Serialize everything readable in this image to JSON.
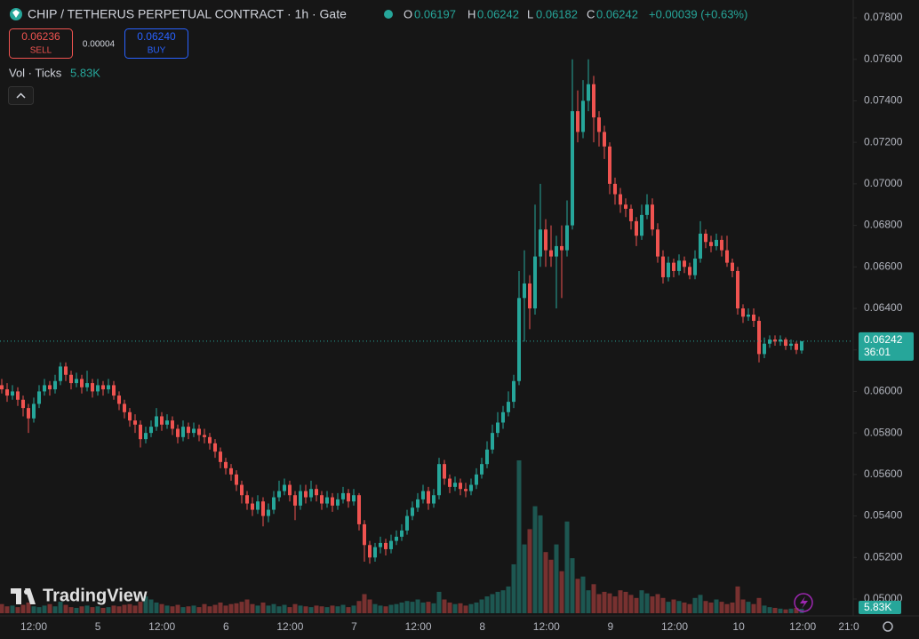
{
  "header": {
    "title": "CHIP / TETHERUS PERPETUAL CONTRACT · 1h · Gate",
    "o_label": "O",
    "h_label": "H",
    "l_label": "L",
    "c_label": "C",
    "change": "+0.00039 (+0.63%)"
  },
  "trade": {
    "sell_price": "0.06236",
    "sell": "SELL",
    "spread": "0.00004",
    "buy_price": "0.06240",
    "buy": "BUY"
  },
  "countdown": "36:01",
  "logo": "TradingView",
  "chart_data": {
    "type": "candlestick",
    "up_color": "#26a69a",
    "down_color": "#ef5350",
    "ylim": [
      0.05,
      0.078
    ],
    "yticks": [
      {
        "value": 0.078,
        "label": "0.07800"
      },
      {
        "value": 0.076,
        "label": "0.07600"
      },
      {
        "value": 0.074,
        "label": "0.07400"
      },
      {
        "value": 0.072,
        "label": "0.07200"
      },
      {
        "value": 0.07,
        "label": "0.07000"
      },
      {
        "value": 0.068,
        "label": "0.06800"
      },
      {
        "value": 0.066,
        "label": "0.06600"
      },
      {
        "value": 0.064,
        "label": "0.06400"
      },
      {
        "value": 0.062,
        "label": "0.06200"
      },
      {
        "value": 0.06,
        "label": "0.06000"
      },
      {
        "value": 0.058,
        "label": "0.05800"
      },
      {
        "value": 0.056,
        "label": "0.05600"
      },
      {
        "value": 0.054,
        "label": "0.05400"
      },
      {
        "value": 0.052,
        "label": "0.05200"
      },
      {
        "value": 0.05,
        "label": "0.05000"
      }
    ],
    "xtick_labels": [
      "12:00",
      "5",
      "12:00",
      "6",
      "12:00",
      "7",
      "12:00",
      "8",
      "12:00",
      "9",
      "12:00",
      "10",
      "12:00",
      "21:0"
    ],
    "ohlc": [
      [
        0.0603,
        0.0606,
        0.0599,
        0.0601
      ],
      [
        0.0601,
        0.0604,
        0.0595,
        0.0598
      ],
      [
        0.0598,
        0.0603,
        0.0596,
        0.06
      ],
      [
        0.06,
        0.0602,
        0.0593,
        0.0596
      ],
      [
        0.0596,
        0.0598,
        0.0588,
        0.0592
      ],
      [
        0.0592,
        0.0594,
        0.058,
        0.0587
      ],
      [
        0.0587,
        0.0597,
        0.0585,
        0.0594
      ],
      [
        0.0594,
        0.0603,
        0.0592,
        0.06
      ],
      [
        0.06,
        0.0606,
        0.0598,
        0.0603
      ],
      [
        0.0603,
        0.0605,
        0.0598,
        0.0601
      ],
      [
        0.0601,
        0.0608,
        0.0599,
        0.0605
      ],
      [
        0.0605,
        0.0614,
        0.0603,
        0.0612
      ],
      [
        0.0612,
        0.0614,
        0.0605,
        0.0608
      ],
      [
        0.0608,
        0.061,
        0.0601,
        0.0604
      ],
      [
        0.0604,
        0.0609,
        0.0602,
        0.0606
      ],
      [
        0.0606,
        0.0608,
        0.0599,
        0.0602
      ],
      [
        0.0602,
        0.061,
        0.06,
        0.0604
      ],
      [
        0.0604,
        0.0606,
        0.0597,
        0.06
      ],
      [
        0.06,
        0.0606,
        0.0598,
        0.0603
      ],
      [
        0.0603,
        0.0605,
        0.0598,
        0.0601
      ],
      [
        0.0601,
        0.0606,
        0.0599,
        0.0603
      ],
      [
        0.0603,
        0.0605,
        0.0596,
        0.0598
      ],
      [
        0.0598,
        0.06,
        0.0591,
        0.0594
      ],
      [
        0.0594,
        0.0596,
        0.0587,
        0.059
      ],
      [
        0.059,
        0.0592,
        0.0583,
        0.0586
      ],
      [
        0.0586,
        0.0589,
        0.058,
        0.0584
      ],
      [
        0.0584,
        0.0586,
        0.0573,
        0.0577
      ],
      [
        0.0577,
        0.0583,
        0.0575,
        0.058
      ],
      [
        0.058,
        0.0586,
        0.0578,
        0.0583
      ],
      [
        0.0583,
        0.0592,
        0.0581,
        0.0588
      ],
      [
        0.0588,
        0.059,
        0.0581,
        0.0584
      ],
      [
        0.0584,
        0.0589,
        0.0582,
        0.0586
      ],
      [
        0.0586,
        0.0588,
        0.0579,
        0.0582
      ],
      [
        0.0582,
        0.0584,
        0.0575,
        0.0578
      ],
      [
        0.0578,
        0.0586,
        0.0576,
        0.0583
      ],
      [
        0.0583,
        0.0585,
        0.0577,
        0.058
      ],
      [
        0.058,
        0.0585,
        0.0578,
        0.0582
      ],
      [
        0.0582,
        0.0584,
        0.0576,
        0.0579
      ],
      [
        0.0579,
        0.0582,
        0.0575,
        0.0578
      ],
      [
        0.0578,
        0.058,
        0.0572,
        0.0575
      ],
      [
        0.0575,
        0.0577,
        0.0568,
        0.0571
      ],
      [
        0.0571,
        0.0573,
        0.0563,
        0.0566
      ],
      [
        0.0566,
        0.0568,
        0.056,
        0.0563
      ],
      [
        0.0563,
        0.0565,
        0.0557,
        0.056
      ],
      [
        0.056,
        0.0562,
        0.0552,
        0.0555
      ],
      [
        0.0555,
        0.0557,
        0.0546,
        0.055
      ],
      [
        0.055,
        0.0552,
        0.0543,
        0.0546
      ],
      [
        0.0546,
        0.0549,
        0.054,
        0.0543
      ],
      [
        0.0543,
        0.055,
        0.0541,
        0.0547
      ],
      [
        0.0547,
        0.0549,
        0.0535,
        0.054
      ],
      [
        0.054,
        0.0546,
        0.0537,
        0.0543
      ],
      [
        0.0543,
        0.0552,
        0.0541,
        0.0549
      ],
      [
        0.0549,
        0.0557,
        0.0547,
        0.0552
      ],
      [
        0.0552,
        0.0558,
        0.055,
        0.0555
      ],
      [
        0.0555,
        0.0557,
        0.0547,
        0.055
      ],
      [
        0.055,
        0.0552,
        0.0538,
        0.0545
      ],
      [
        0.0545,
        0.0555,
        0.0543,
        0.0552
      ],
      [
        0.0552,
        0.0555,
        0.0546,
        0.0549
      ],
      [
        0.0549,
        0.0557,
        0.0547,
        0.0553
      ],
      [
        0.0553,
        0.0555,
        0.0547,
        0.055
      ],
      [
        0.055,
        0.0552,
        0.0543,
        0.0546
      ],
      [
        0.0546,
        0.0552,
        0.0544,
        0.0549
      ],
      [
        0.0549,
        0.0551,
        0.0542,
        0.0545
      ],
      [
        0.0545,
        0.0551,
        0.0543,
        0.0548
      ],
      [
        0.0548,
        0.0554,
        0.0546,
        0.0551
      ],
      [
        0.0551,
        0.0553,
        0.0544,
        0.0547
      ],
      [
        0.0547,
        0.0553,
        0.0545,
        0.055
      ],
      [
        0.055,
        0.0551,
        0.0533,
        0.0536
      ],
      [
        0.0536,
        0.0538,
        0.0518,
        0.0526
      ],
      [
        0.0526,
        0.0528,
        0.0517,
        0.052
      ],
      [
        0.052,
        0.0527,
        0.0518,
        0.0525
      ],
      [
        0.0525,
        0.053,
        0.0522,
        0.0527
      ],
      [
        0.0527,
        0.0529,
        0.0521,
        0.0524
      ],
      [
        0.0524,
        0.0531,
        0.0522,
        0.0528
      ],
      [
        0.0528,
        0.0533,
        0.0526,
        0.053
      ],
      [
        0.053,
        0.0536,
        0.0528,
        0.0533
      ],
      [
        0.0533,
        0.0543,
        0.0531,
        0.054
      ],
      [
        0.054,
        0.0547,
        0.0538,
        0.0544
      ],
      [
        0.0544,
        0.0551,
        0.0542,
        0.0548
      ],
      [
        0.0548,
        0.0555,
        0.0546,
        0.0552
      ],
      [
        0.0552,
        0.0554,
        0.0543,
        0.0546
      ],
      [
        0.0546,
        0.0553,
        0.0544,
        0.055
      ],
      [
        0.055,
        0.0568,
        0.0548,
        0.0565
      ],
      [
        0.0565,
        0.0567,
        0.0555,
        0.0558
      ],
      [
        0.0558,
        0.056,
        0.0551,
        0.0554
      ],
      [
        0.0554,
        0.0559,
        0.0552,
        0.0556
      ],
      [
        0.0556,
        0.0558,
        0.055,
        0.0553
      ],
      [
        0.0553,
        0.0556,
        0.0549,
        0.0552
      ],
      [
        0.0552,
        0.0558,
        0.055,
        0.0555
      ],
      [
        0.0555,
        0.0563,
        0.0553,
        0.056
      ],
      [
        0.056,
        0.0568,
        0.0558,
        0.0565
      ],
      [
        0.0565,
        0.0576,
        0.0563,
        0.0572
      ],
      [
        0.0572,
        0.0584,
        0.057,
        0.058
      ],
      [
        0.058,
        0.059,
        0.0578,
        0.0585
      ],
      [
        0.0585,
        0.0593,
        0.0582,
        0.059
      ],
      [
        0.059,
        0.06,
        0.0588,
        0.0595
      ],
      [
        0.0595,
        0.0608,
        0.0592,
        0.0605
      ],
      [
        0.0605,
        0.0658,
        0.0603,
        0.0645
      ],
      [
        0.0645,
        0.0668,
        0.0624,
        0.0652
      ],
      [
        0.0652,
        0.0656,
        0.063,
        0.064
      ],
      [
        0.064,
        0.069,
        0.0637,
        0.0665
      ],
      [
        0.0665,
        0.07,
        0.066,
        0.0678
      ],
      [
        0.0678,
        0.0683,
        0.066,
        0.0668
      ],
      [
        0.0668,
        0.068,
        0.066,
        0.0665
      ],
      [
        0.0665,
        0.0675,
        0.064,
        0.067
      ],
      [
        0.067,
        0.068,
        0.0645,
        0.0668
      ],
      [
        0.0668,
        0.0692,
        0.0665,
        0.068
      ],
      [
        0.068,
        0.076,
        0.0678,
        0.0735
      ],
      [
        0.0735,
        0.0745,
        0.072,
        0.0725
      ],
      [
        0.0725,
        0.075,
        0.0722,
        0.074
      ],
      [
        0.074,
        0.076,
        0.0735,
        0.0748
      ],
      [
        0.0748,
        0.0752,
        0.072,
        0.0732
      ],
      [
        0.0732,
        0.0735,
        0.0718,
        0.0725
      ],
      [
        0.0725,
        0.0728,
        0.0712,
        0.0718
      ],
      [
        0.0718,
        0.072,
        0.0695,
        0.07
      ],
      [
        0.07,
        0.0703,
        0.069,
        0.0695
      ],
      [
        0.0695,
        0.0698,
        0.0686,
        0.069
      ],
      [
        0.069,
        0.0693,
        0.0684,
        0.0688
      ],
      [
        0.0688,
        0.069,
        0.0678,
        0.0682
      ],
      [
        0.0682,
        0.0684,
        0.067,
        0.0675
      ],
      [
        0.0675,
        0.069,
        0.0673,
        0.0685
      ],
      [
        0.0685,
        0.0695,
        0.0683,
        0.069
      ],
      [
        0.069,
        0.0693,
        0.0675,
        0.0678
      ],
      [
        0.0678,
        0.0681,
        0.0662,
        0.0665
      ],
      [
        0.0665,
        0.0668,
        0.0652,
        0.0655
      ],
      [
        0.0655,
        0.0665,
        0.0653,
        0.0662
      ],
      [
        0.0662,
        0.0664,
        0.0655,
        0.0658
      ],
      [
        0.0658,
        0.0666,
        0.0656,
        0.0663
      ],
      [
        0.0663,
        0.0665,
        0.0657,
        0.066
      ],
      [
        0.066,
        0.0662,
        0.0654,
        0.0656
      ],
      [
        0.0656,
        0.0668,
        0.0654,
        0.0664
      ],
      [
        0.0664,
        0.0682,
        0.0662,
        0.0676
      ],
      [
        0.0676,
        0.0678,
        0.0669,
        0.0672
      ],
      [
        0.0672,
        0.0675,
        0.0667,
        0.067
      ],
      [
        0.067,
        0.0676,
        0.0668,
        0.0673
      ],
      [
        0.0673,
        0.0675,
        0.0665,
        0.0668
      ],
      [
        0.0668,
        0.0675,
        0.066,
        0.0662
      ],
      [
        0.0662,
        0.0664,
        0.0655,
        0.0658
      ],
      [
        0.0658,
        0.066,
        0.0637,
        0.064
      ],
      [
        0.064,
        0.0642,
        0.0633,
        0.0636
      ],
      [
        0.0636,
        0.064,
        0.0634,
        0.0637
      ],
      [
        0.0637,
        0.064,
        0.0631,
        0.0634
      ],
      [
        0.0634,
        0.0636,
        0.0614,
        0.0618
      ],
      [
        0.0618,
        0.0626,
        0.0616,
        0.0623
      ],
      [
        0.0623,
        0.0627,
        0.0621,
        0.0625
      ],
      [
        0.0625,
        0.0627,
        0.0622,
        0.0624
      ],
      [
        0.0624,
        0.0627,
        0.0622,
        0.0625
      ],
      [
        0.0625,
        0.0626,
        0.062,
        0.0622
      ],
      [
        0.0622,
        0.0625,
        0.062,
        0.0623
      ],
      [
        0.0623,
        0.0624,
        0.0618,
        0.062
      ],
      [
        0.06197,
        0.06242,
        0.06182,
        0.06242
      ]
    ],
    "volume": {
      "name": "Vol · Ticks",
      "last_value_label": "5.83K",
      "values": [
        12000,
        9000,
        10000,
        8000,
        11000,
        14000,
        9000,
        8000,
        10000,
        12000,
        9000,
        15000,
        11000,
        8000,
        7000,
        9000,
        10000,
        8000,
        9000,
        7000,
        8000,
        10000,
        9000,
        11000,
        12000,
        10000,
        15000,
        22000,
        18000,
        14000,
        12000,
        10000,
        9000,
        11000,
        8000,
        9000,
        10000,
        8000,
        12000,
        9000,
        11000,
        14000,
        10000,
        12000,
        13000,
        15000,
        18000,
        12000,
        10000,
        14000,
        10000,
        12000,
        9000,
        11000,
        8000,
        12000,
        10000,
        9000,
        8000,
        10000,
        9000,
        8000,
        10000,
        9000,
        11000,
        8000,
        10000,
        16000,
        25000,
        18000,
        12000,
        10000,
        9000,
        11000,
        12000,
        14000,
        16000,
        15000,
        18000,
        14000,
        15000,
        13000,
        28000,
        18000,
        14000,
        12000,
        13000,
        10000,
        12000,
        14000,
        18000,
        22000,
        25000,
        28000,
        30000,
        35000,
        64000,
        200000,
        90000,
        110000,
        140000,
        128000,
        80000,
        70000,
        90000,
        55000,
        120000,
        72000,
        45000,
        48000,
        30000,
        38000,
        25000,
        28000,
        26000,
        22000,
        30000,
        28000,
        24000,
        20000,
        30000,
        26000,
        22000,
        25000,
        20000,
        15000,
        18000,
        16000,
        14000,
        12000,
        20000,
        24000,
        16000,
        14000,
        18000,
        15000,
        12000,
        14000,
        35000,
        18000,
        15000,
        12000,
        20000,
        10000,
        8000,
        7000,
        6000,
        5000,
        6000,
        7000,
        5830
      ]
    }
  }
}
